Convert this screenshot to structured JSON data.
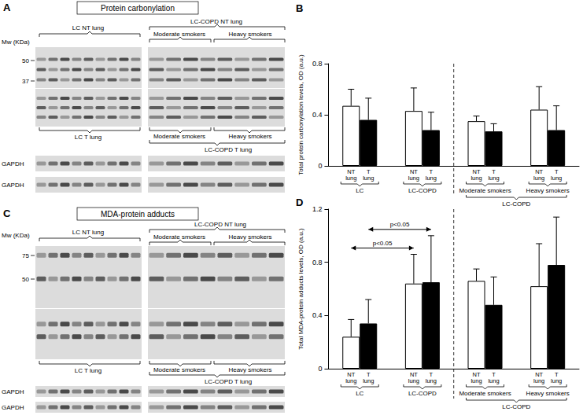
{
  "panel_labels": [
    "A",
    "B",
    "C",
    "D"
  ],
  "blots": [
    {
      "title": "Protein carbonylation",
      "mw_label": "Mw (KDa)",
      "mw_markers": [
        50,
        37
      ],
      "nt_labels": {
        "lc": "LC NT lung",
        "copd": "LC-COPD NT lung",
        "moderate": "Moderate smokers",
        "heavy": "Heavy smokers"
      },
      "t_labels": {
        "lc": "LC T lung",
        "copd": "LC-COPD T lung",
        "moderate": "Moderate smokers",
        "heavy": "Heavy smokers"
      },
      "loading_control": [
        "GAPDH",
        "GAPDH"
      ]
    },
    {
      "title": "MDA-protein adducts",
      "mw_label": "Mw (KDa)",
      "mw_markers": [
        75,
        50
      ],
      "nt_labels": {
        "lc": "LC NT lung",
        "copd": "LC-COPD NT lung",
        "moderate": "Moderate smokers",
        "heavy": "Heavy smokers"
      },
      "t_labels": {
        "lc": "LC T lung",
        "copd": "LC-COPD T lung",
        "moderate": "Moderate smokers",
        "heavy": "Heavy smokers"
      },
      "loading_control": [
        "GAPDH",
        "GAPDH"
      ]
    }
  ],
  "chart_data": [
    {
      "type": "bar",
      "ylabel": "Total protein carbonylation levels, OD (a.u.)",
      "categories": [
        "LC",
        "LC-COPD",
        "Moderate smokers",
        "Heavy smokers"
      ],
      "series": [
        {
          "name": "NT lung",
          "color": "#ffffff",
          "values": [
            0.47,
            0.43,
            0.35,
            0.44
          ],
          "errors": [
            0.13,
            0.18,
            0.04,
            0.18
          ]
        },
        {
          "name": "T lung",
          "color": "#000000",
          "values": [
            0.36,
            0.28,
            0.27,
            0.28
          ],
          "errors": [
            0.17,
            0.14,
            0.06,
            0.19
          ]
        }
      ],
      "ylim": [
        0,
        0.8
      ],
      "yticks": [
        0,
        0.4,
        0.8
      ],
      "grid": false,
      "annotations": [
        {
          "text": "LC-COPD",
          "groups": [
            "Moderate smokers",
            "Heavy smokers"
          ]
        }
      ]
    },
    {
      "type": "bar",
      "ylabel": "Total MDA-protein adducts levels, OD (a.u.)",
      "categories": [
        "LC",
        "LC-COPD",
        "Moderate smokers",
        "Heavy smokers"
      ],
      "series": [
        {
          "name": "NT lung",
          "color": "#ffffff",
          "values": [
            0.24,
            0.64,
            0.66,
            0.62
          ],
          "errors": [
            0.13,
            0.22,
            0.09,
            0.32
          ]
        },
        {
          "name": "T lung",
          "color": "#000000",
          "values": [
            0.34,
            0.65,
            0.48,
            0.78
          ],
          "errors": [
            0.18,
            0.35,
            0.21,
            0.36
          ]
        }
      ],
      "ylim": [
        0,
        1.2
      ],
      "yticks": [
        0,
        0.4,
        0.8,
        1.2
      ],
      "grid": false,
      "annotations": [
        {
          "text": "p<0.05",
          "series": "T lung",
          "groups": [
            "LC",
            "LC-COPD"
          ]
        },
        {
          "text": "p<0.05",
          "series": "NT lung",
          "groups": [
            "LC",
            "LC-COPD"
          ]
        },
        {
          "text": "LC-COPD",
          "groups": [
            "Moderate smokers",
            "Heavy smokers"
          ]
        }
      ]
    }
  ]
}
